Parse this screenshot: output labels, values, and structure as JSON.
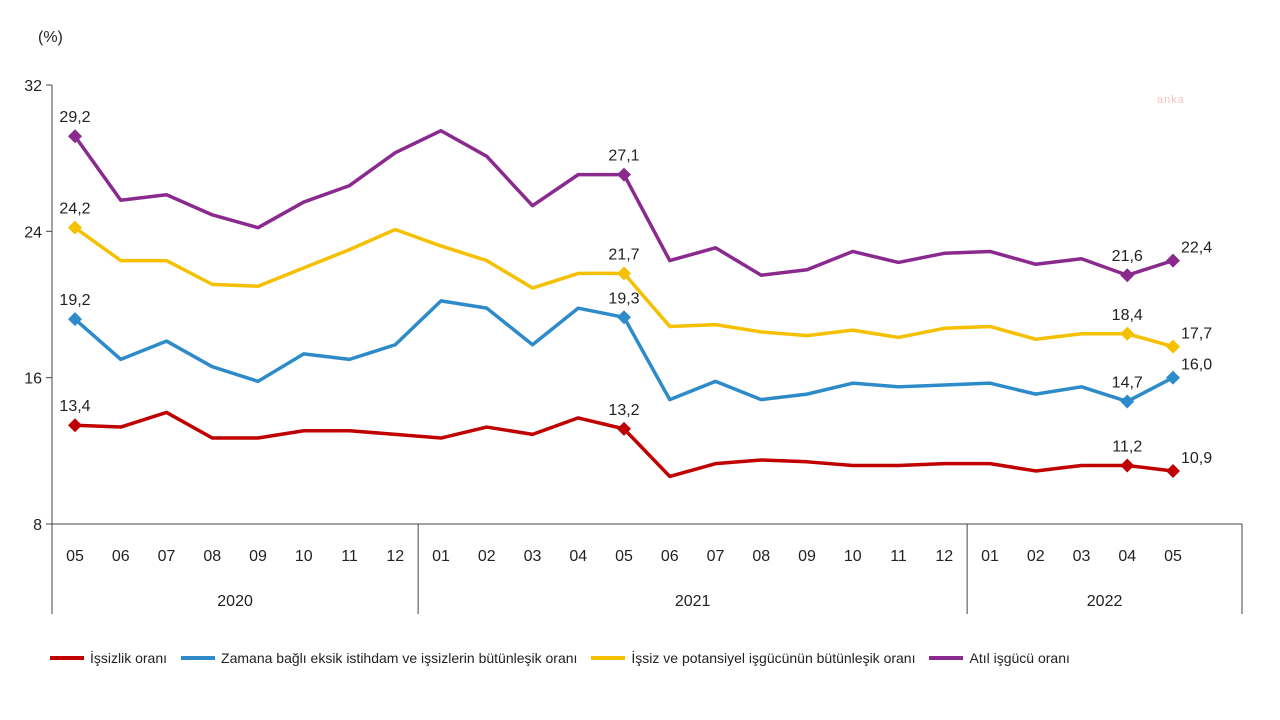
{
  "watermark": "anka",
  "chart_data": {
    "type": "line",
    "ylabel": "(%)",
    "ylim": [
      8,
      32
    ],
    "yticks": [
      "8",
      "16",
      "24",
      "32"
    ],
    "categories": [
      "05",
      "06",
      "07",
      "08",
      "09",
      "10",
      "11",
      "12",
      "01",
      "02",
      "03",
      "04",
      "05",
      "06",
      "07",
      "08",
      "09",
      "10",
      "11",
      "12",
      "01",
      "02",
      "03",
      "04",
      "05"
    ],
    "years": [
      {
        "label": "2020",
        "start": 0,
        "end": 7
      },
      {
        "label": "2021",
        "start": 8,
        "end": 19
      },
      {
        "label": "2022",
        "start": 20,
        "end": 24
      }
    ],
    "grid": false,
    "legend_position": "bottom",
    "series": [
      {
        "name": "İşsizlik oranı",
        "color": "#c00000",
        "values": [
          13.4,
          13.3,
          14.1,
          12.7,
          12.7,
          13.1,
          13.1,
          12.9,
          12.7,
          13.3,
          12.9,
          13.8,
          13.2,
          10.6,
          11.3,
          11.5,
          11.4,
          11.2,
          11.2,
          11.3,
          11.3,
          10.9,
          11.2,
          11.2,
          10.9
        ],
        "labels": {
          "0": "13,4",
          "12": "13,2",
          "23": "11,2",
          "24": "10,9"
        }
      },
      {
        "name": "Zamana bağlı eksik istihdam ve işsizlerin bütünleşik oranı",
        "color": "#2e8bc9",
        "values": [
          19.2,
          17.0,
          18.0,
          16.6,
          15.8,
          17.3,
          17.0,
          17.8,
          20.2,
          19.8,
          17.8,
          19.8,
          19.3,
          14.8,
          15.8,
          14.8,
          15.1,
          15.7,
          15.5,
          15.6,
          15.7,
          15.1,
          15.5,
          14.7,
          16.0
        ],
        "labels": {
          "0": "19,2",
          "12": "19,3",
          "23": "14,7",
          "24": "16,0"
        }
      },
      {
        "name": "İşsiz ve potansiyel işgücünün bütünleşik oranı",
        "color": "#f5c000",
        "values": [
          24.2,
          22.4,
          22.4,
          21.1,
          21.0,
          22.0,
          23.0,
          24.1,
          23.2,
          22.4,
          20.9,
          21.7,
          21.7,
          18.8,
          18.9,
          18.5,
          18.3,
          18.6,
          18.2,
          18.7,
          18.8,
          18.1,
          18.4,
          18.4,
          17.7
        ],
        "labels": {
          "0": "24,2",
          "12": "21,7",
          "23": "18,4",
          "24": "17,7"
        }
      },
      {
        "name": "Atıl işgücü oranı",
        "color": "#8b2a8e",
        "values": [
          29.2,
          25.7,
          26.0,
          24.9,
          24.2,
          25.6,
          26.5,
          28.3,
          29.5,
          28.1,
          25.4,
          27.1,
          27.1,
          22.4,
          23.1,
          21.6,
          21.9,
          22.9,
          22.3,
          22.8,
          22.9,
          22.2,
          22.5,
          21.6,
          22.4
        ],
        "labels": {
          "0": "29,2",
          "12": "27,1",
          "23": "21,6",
          "24": "22,4"
        }
      }
    ]
  }
}
